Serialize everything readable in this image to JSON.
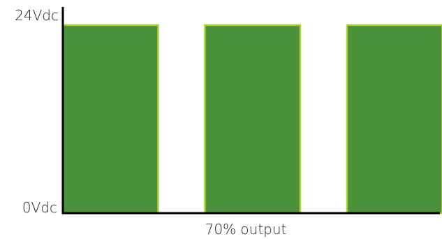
{
  "y_axis": {
    "max_label": "24Vdc",
    "min_label": "0Vdc",
    "max_volts": 24,
    "min_volts": 0
  },
  "x_axis": {
    "label": "70% output"
  },
  "pulses": [
    {
      "duty_fraction": 0.7,
      "level_volts": 24
    },
    {
      "duty_fraction": 0.7,
      "level_volts": 24
    },
    {
      "duty_fraction": 0.7,
      "level_volts": 24
    }
  ],
  "colors": {
    "pulse_fill": "#4a9139",
    "pulse_edge": "#a8d02a",
    "axis": "#000000",
    "text": "#222222"
  }
}
